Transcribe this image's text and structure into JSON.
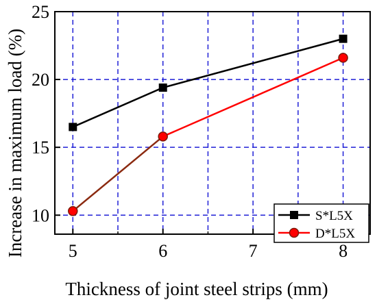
{
  "chart_data": {
    "type": "line",
    "title": "",
    "xlabel": "Thickness of joint steel strips (mm)",
    "ylabel": "Increase in maximum load (%)",
    "xlim": [
      4.8,
      8.3
    ],
    "ylim": [
      8.6,
      25
    ],
    "xticks": [
      5,
      6,
      7,
      8
    ],
    "yticks": [
      10,
      15,
      20,
      25
    ],
    "grid_x": [
      5,
      5.5,
      6,
      6.5,
      7,
      7.5,
      8
    ],
    "grid_y": [
      10,
      15,
      20
    ],
    "grid": true,
    "legend_position": "bottom-right",
    "series": [
      {
        "name": "S*L5X",
        "marker": "square",
        "color": "#000000",
        "x": [
          5,
          6,
          8
        ],
        "y": [
          16.5,
          19.4,
          23.0
        ]
      },
      {
        "name": "D*L5X",
        "marker": "circle",
        "color": "#ff0000",
        "x": [
          5,
          6,
          8
        ],
        "y": [
          10.3,
          15.8,
          21.6
        ]
      }
    ],
    "colors": {
      "grid": "#1f1fd6",
      "axis": "#000000",
      "series_1": "#000000",
      "series_2": "#ff0000",
      "segment_first": "#8b2a10",
      "marker_edge": "#7a1a0a"
    }
  }
}
